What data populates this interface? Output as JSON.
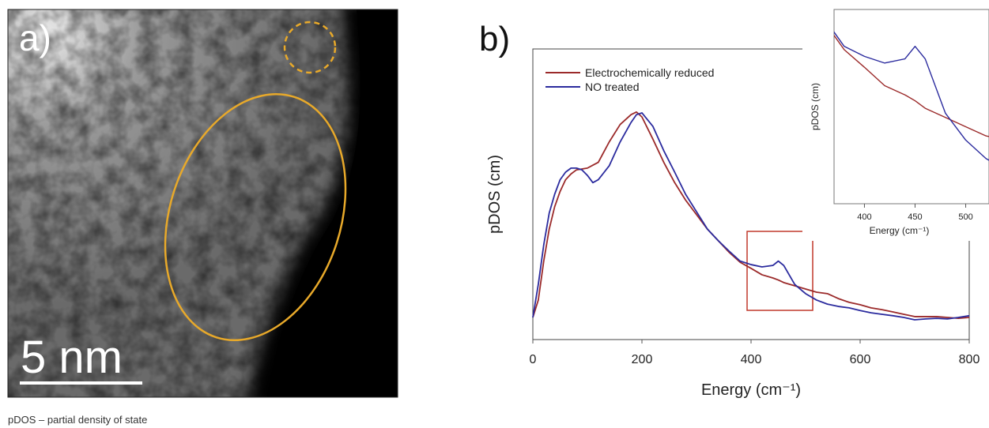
{
  "panel_a": {
    "label": "a)",
    "scale_bar": "5 nm"
  },
  "panel_b": {
    "label": "b)"
  },
  "footnote": "pDOS – partial density of state",
  "chart_data": [
    {
      "type": "line",
      "xlabel": "Energy (cm⁻¹)",
      "ylabel": "pDOS (cm)",
      "legend": "upper left",
      "xlim": [
        0,
        800
      ],
      "ylim": [
        0,
        1
      ],
      "xticks": [
        0,
        200,
        400,
        600,
        800
      ],
      "x": [
        0,
        10,
        20,
        30,
        40,
        50,
        60,
        70,
        80,
        90,
        100,
        110,
        120,
        140,
        160,
        180,
        190,
        200,
        220,
        240,
        260,
        280,
        300,
        320,
        340,
        360,
        380,
        400,
        420,
        440,
        450,
        460,
        480,
        500,
        520,
        540,
        560,
        580,
        600,
        620,
        640,
        660,
        680,
        700,
        720,
        740,
        760,
        780,
        800
      ],
      "series": [
        {
          "name": "Electrochemically reduced",
          "color": "#9b2a2a",
          "values": [
            0.076,
            0.136,
            0.27,
            0.38,
            0.457,
            0.51,
            0.55,
            0.57,
            0.584,
            0.587,
            0.59,
            0.6,
            0.61,
            0.68,
            0.74,
            0.774,
            0.783,
            0.766,
            0.69,
            0.61,
            0.54,
            0.48,
            0.43,
            0.38,
            0.34,
            0.3,
            0.266,
            0.245,
            0.223,
            0.212,
            0.205,
            0.196,
            0.185,
            0.174,
            0.163,
            0.158,
            0.141,
            0.128,
            0.12,
            0.109,
            0.103,
            0.095,
            0.087,
            0.079,
            0.079,
            0.079,
            0.076,
            0.073,
            0.076
          ]
        },
        {
          "name": "NO treated",
          "color": "#2b2b9e",
          "values": [
            0.076,
            0.19,
            0.326,
            0.435,
            0.5,
            0.55,
            0.576,
            0.59,
            0.59,
            0.584,
            0.565,
            0.54,
            0.55,
            0.598,
            0.68,
            0.747,
            0.774,
            0.78,
            0.734,
            0.65,
            0.576,
            0.5,
            0.44,
            0.38,
            0.34,
            0.304,
            0.27,
            0.258,
            0.25,
            0.255,
            0.27,
            0.255,
            0.19,
            0.158,
            0.136,
            0.122,
            0.114,
            0.109,
            0.1,
            0.092,
            0.087,
            0.082,
            0.076,
            0.068,
            0.071,
            0.073,
            0.071,
            0.076,
            0.082
          ]
        }
      ]
    },
    {
      "type": "line",
      "xlabel": "Energy (cm⁻¹)",
      "ylabel": "pDOS (cm)",
      "xlim": [
        370,
        523
      ],
      "ylim": [
        0.082,
        0.314
      ],
      "xticks": [
        400,
        450,
        500
      ]
    }
  ]
}
